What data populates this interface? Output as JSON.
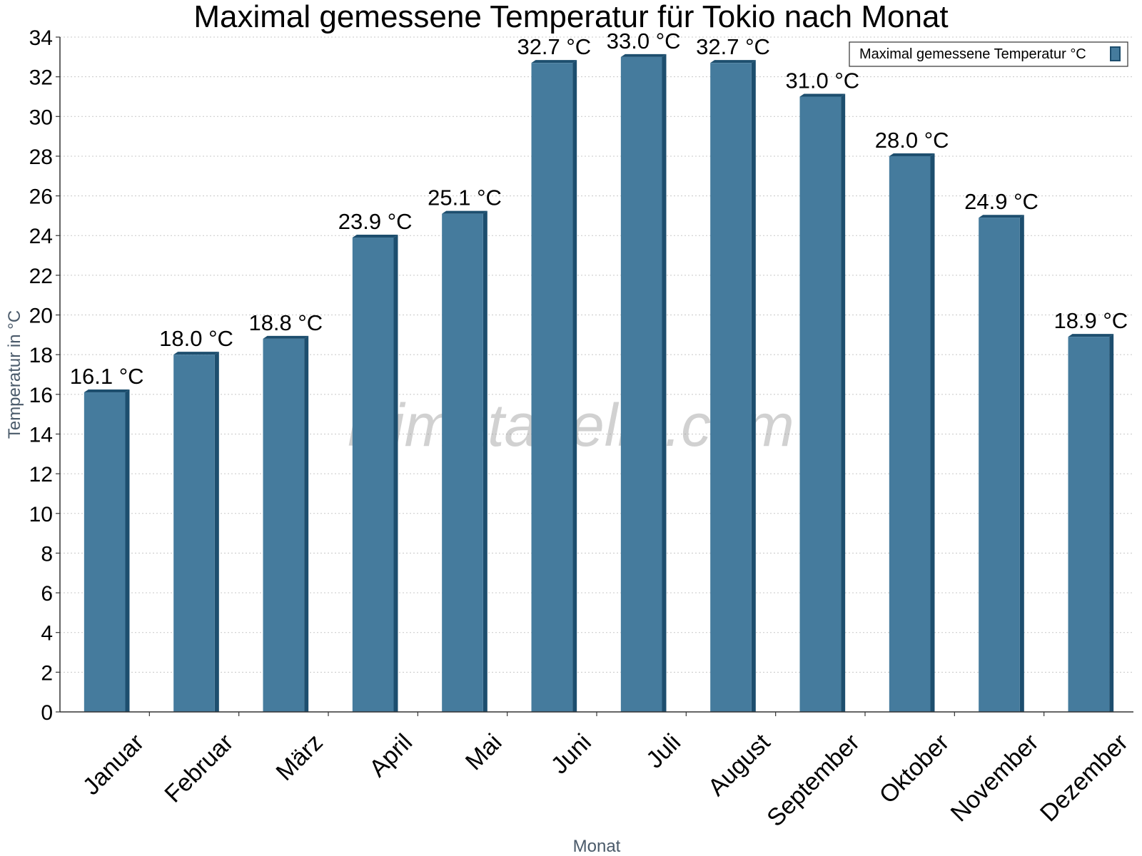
{
  "chart_data": {
    "type": "bar",
    "title": "Maximal gemessene Temperatur für Tokio nach Monat",
    "xlabel": "Monat",
    "ylabel": "Temperatur in °C",
    "ylim": [
      0,
      34
    ],
    "ytick_step": 2,
    "grid": true,
    "legend_position": "top-right",
    "unit_suffix": " °C",
    "categories": [
      "Januar",
      "Februar",
      "März",
      "April",
      "Mai",
      "Juni",
      "Juli",
      "August",
      "September",
      "Oktober",
      "November",
      "Dezember"
    ],
    "series": [
      {
        "name": "Maximal gemessene Temperatur °C",
        "values": [
          16.1,
          18.0,
          18.8,
          23.9,
          25.1,
          32.7,
          33.0,
          32.7,
          31.0,
          28.0,
          24.9,
          18.9
        ],
        "color": "#457b9d",
        "edge_color": "#1d4e6e"
      }
    ],
    "watermark": "klimatabelle.com"
  }
}
